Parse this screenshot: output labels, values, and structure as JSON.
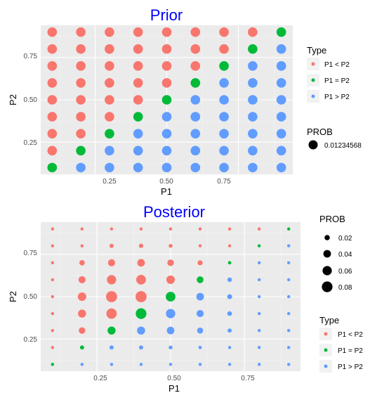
{
  "colors": {
    "panel_bg": "#ebebeb",
    "grid_major": "#ffffff",
    "grid_minor": "#f4f4f4",
    "title": "#0000ff",
    "text": "#000000",
    "tick_text": "#4d4d4d",
    "p1_lt_p2": "#f8766d",
    "p1_eq_p2": "#00ba38",
    "p1_gt_p2": "#619cff"
  },
  "type_legend": {
    "title": "Type",
    "items": [
      {
        "label": "P1 < P2",
        "color_key": "p1_lt_p2"
      },
      {
        "label": "P1 = P2",
        "color_key": "p1_eq_p2"
      },
      {
        "label": "P1 > P2",
        "color_key": "p1_gt_p2"
      }
    ]
  },
  "chart_data": [
    {
      "type": "scatter",
      "title": "Prior",
      "xlabel": "P1",
      "ylabel": "P2",
      "x_ticks": [
        "0.25",
        "0.50",
        "0.75"
      ],
      "y_ticks": [
        "0.25",
        "0.50",
        "0.75"
      ],
      "xlim": [
        0.06,
        0.94
      ],
      "ylim": [
        0.06,
        0.94
      ],
      "grid": true,
      "legend_position": "right",
      "color_legend": "Type",
      "size_legend": {
        "title": "PROB",
        "breaks": [
          0.01234568
        ],
        "labels": [
          "0.01234568"
        ]
      },
      "grid_values": [
        0.1,
        0.2,
        0.3,
        0.4,
        0.5,
        0.6,
        0.7,
        0.8,
        0.9
      ],
      "prob_matrix": [
        [
          0.01234568,
          0.01234568,
          0.01234568,
          0.01234568,
          0.01234568,
          0.01234568,
          0.01234568,
          0.01234568,
          0.01234568
        ],
        [
          0.01234568,
          0.01234568,
          0.01234568,
          0.01234568,
          0.01234568,
          0.01234568,
          0.01234568,
          0.01234568,
          0.01234568
        ],
        [
          0.01234568,
          0.01234568,
          0.01234568,
          0.01234568,
          0.01234568,
          0.01234568,
          0.01234568,
          0.01234568,
          0.01234568
        ],
        [
          0.01234568,
          0.01234568,
          0.01234568,
          0.01234568,
          0.01234568,
          0.01234568,
          0.01234568,
          0.01234568,
          0.01234568
        ],
        [
          0.01234568,
          0.01234568,
          0.01234568,
          0.01234568,
          0.01234568,
          0.01234568,
          0.01234568,
          0.01234568,
          0.01234568
        ],
        [
          0.01234568,
          0.01234568,
          0.01234568,
          0.01234568,
          0.01234568,
          0.01234568,
          0.01234568,
          0.01234568,
          0.01234568
        ],
        [
          0.01234568,
          0.01234568,
          0.01234568,
          0.01234568,
          0.01234568,
          0.01234568,
          0.01234568,
          0.01234568,
          0.01234568
        ],
        [
          0.01234568,
          0.01234568,
          0.01234568,
          0.01234568,
          0.01234568,
          0.01234568,
          0.01234568,
          0.01234568,
          0.01234568
        ],
        [
          0.01234568,
          0.01234568,
          0.01234568,
          0.01234568,
          0.01234568,
          0.01234568,
          0.01234568,
          0.01234568,
          0.01234568
        ]
      ]
    },
    {
      "type": "scatter",
      "title": "Posterior",
      "xlabel": "P1",
      "ylabel": "P2",
      "x_ticks": [
        "0.25",
        "0.50",
        "0.75"
      ],
      "y_ticks": [
        "0.25",
        "0.50",
        "0.75"
      ],
      "xlim": [
        0.06,
        0.94
      ],
      "ylim": [
        0.06,
        0.94
      ],
      "grid": true,
      "legend_position": "right",
      "color_legend": "Type",
      "size_legend": {
        "title": "PROB",
        "breaks": [
          0.02,
          0.04,
          0.06,
          0.08
        ],
        "labels": [
          "0.02",
          "0.04",
          "0.06",
          "0.08"
        ]
      },
      "grid_values": [
        0.1,
        0.2,
        0.3,
        0.4,
        0.5,
        0.6,
        0.7,
        0.8,
        0.9
      ],
      "prob_matrix": [
        [
          0.001,
          0.001,
          0.001,
          0.001,
          0.001,
          0.001,
          0.001,
          0.001,
          0.001
        ],
        [
          0.002,
          0.012,
          0.012,
          0.012,
          0.01,
          0.008,
          0.005,
          0.003,
          0.001
        ],
        [
          0.003,
          0.03,
          0.045,
          0.045,
          0.04,
          0.025,
          0.012,
          0.005,
          0.001
        ],
        [
          0.004,
          0.045,
          0.075,
          0.08,
          0.06,
          0.035,
          0.015,
          0.006,
          0.001
        ],
        [
          0.004,
          0.05,
          0.085,
          0.085,
          0.065,
          0.04,
          0.017,
          0.006,
          0.001
        ],
        [
          0.003,
          0.035,
          0.06,
          0.065,
          0.05,
          0.032,
          0.014,
          0.005,
          0.001
        ],
        [
          0.002,
          0.02,
          0.035,
          0.04,
          0.03,
          0.018,
          0.008,
          0.003,
          0.001
        ],
        [
          0.001,
          0.007,
          0.012,
          0.013,
          0.01,
          0.006,
          0.003,
          0.001,
          0.001
        ],
        [
          0.001,
          0.001,
          0.001,
          0.001,
          0.001,
          0.001,
          0.001,
          0.001,
          0.001
        ]
      ]
    }
  ]
}
